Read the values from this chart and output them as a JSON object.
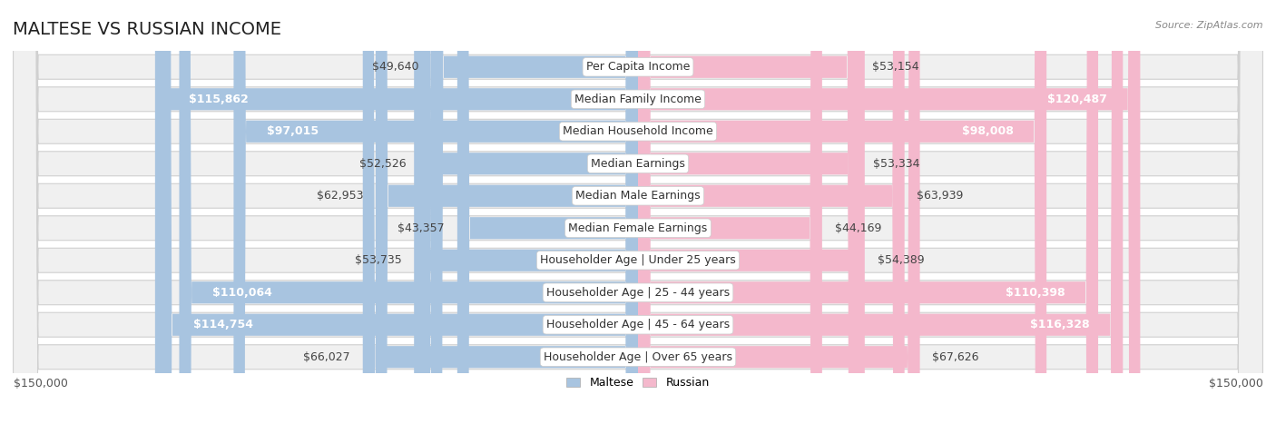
{
  "title": "MALTESE VS RUSSIAN INCOME",
  "source": "Source: ZipAtlas.com",
  "categories": [
    "Per Capita Income",
    "Median Family Income",
    "Median Household Income",
    "Median Earnings",
    "Median Male Earnings",
    "Median Female Earnings",
    "Householder Age | Under 25 years",
    "Householder Age | 25 - 44 years",
    "Householder Age | 45 - 64 years",
    "Householder Age | Over 65 years"
  ],
  "maltese_values": [
    49640,
    115862,
    97015,
    52526,
    62953,
    43357,
    53735,
    110064,
    114754,
    66027
  ],
  "russian_values": [
    53154,
    120487,
    98008,
    53334,
    63939,
    44169,
    54389,
    110398,
    116328,
    67626
  ],
  "maltese_labels": [
    "$49,640",
    "$115,862",
    "$97,015",
    "$52,526",
    "$62,953",
    "$43,357",
    "$53,735",
    "$110,064",
    "$114,754",
    "$66,027"
  ],
  "russian_labels": [
    "$53,154",
    "$120,487",
    "$98,008",
    "$53,334",
    "$63,939",
    "$44,169",
    "$54,389",
    "$110,398",
    "$116,328",
    "$67,626"
  ],
  "maltese_color_light": "#a8c4e0",
  "maltese_color_dark": "#5b9bd5",
  "russian_color_light": "#f4b8cc",
  "russian_color_dark": "#e8679a",
  "row_bg_color": "#efefef",
  "row_alt_bg_color": "#f7f7f7",
  "max_value": 150000,
  "legend_maltese": "Maltese",
  "legend_russian": "Russian",
  "title_fontsize": 14,
  "label_fontsize": 9,
  "axis_label_fontsize": 9,
  "category_fontsize": 9,
  "inside_threshold": 75000,
  "background_color": "#ffffff"
}
